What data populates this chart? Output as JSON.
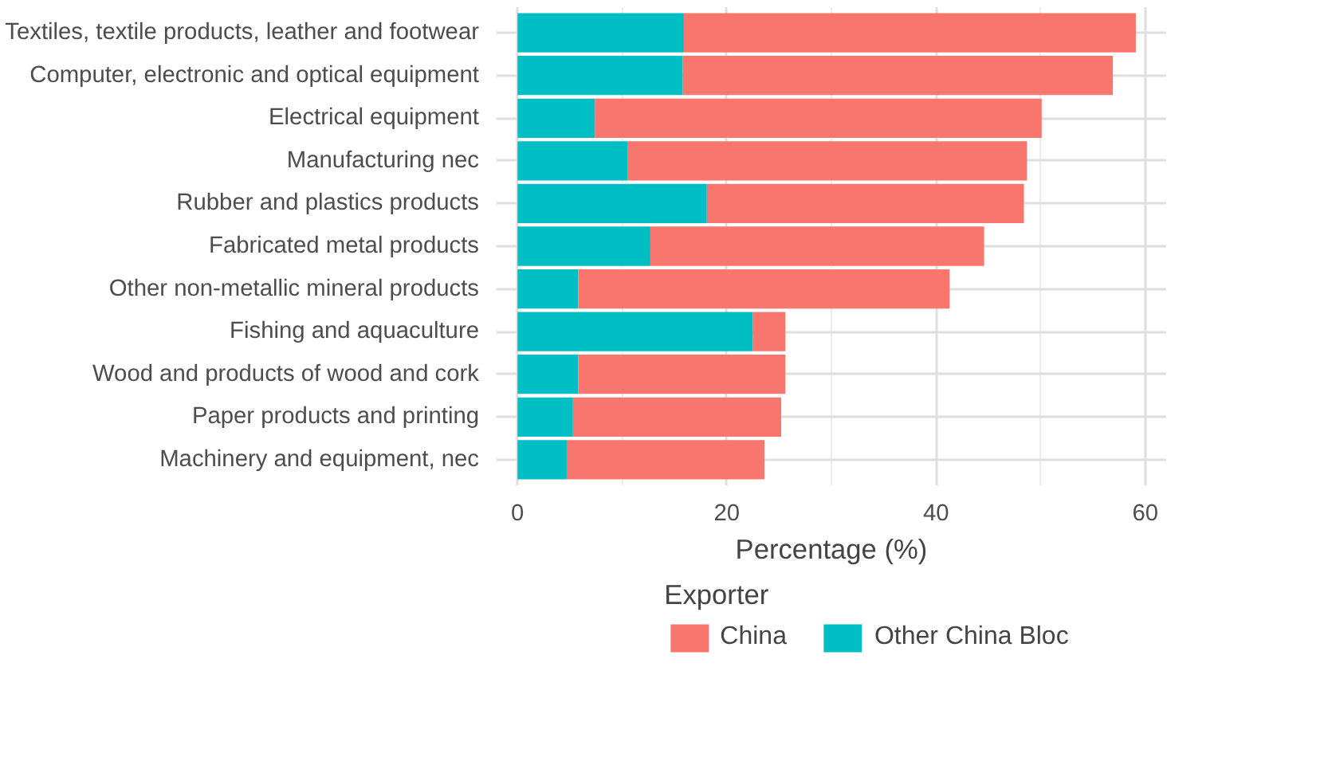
{
  "chart_data": {
    "type": "bar",
    "orientation": "horizontal",
    "stacked": true,
    "xlabel": "Percentage (%)",
    "legend_title": "Exporter",
    "categories": [
      "Textiles, textile products, leather and footwear",
      "Computer, electronic and optical equipment",
      "Electrical equipment",
      "Manufacturing nec",
      "Rubber and plastics products",
      "Fabricated metal products",
      "Other non-metallic mineral products",
      "Fishing and aquaculture",
      "Wood and products of wood and cork",
      "Paper products and printing",
      "Machinery and equipment, nec"
    ],
    "series": [
      {
        "name": "Other China Bloc",
        "color": "#00bfc4",
        "values": [
          15.9,
          15.8,
          7.4,
          10.5,
          18.1,
          12.7,
          5.8,
          22.5,
          5.8,
          5.3,
          4.7
        ]
      },
      {
        "name": "China",
        "color": "#f8766d",
        "values": [
          43.2,
          41.1,
          42.7,
          38.2,
          30.3,
          31.9,
          35.5,
          3.1,
          19.8,
          19.9,
          18.9
        ]
      }
    ],
    "xlim": [
      -2,
      62
    ],
    "xticks": [
      0,
      20,
      40,
      60
    ],
    "grid": true,
    "legend": "bottom"
  }
}
